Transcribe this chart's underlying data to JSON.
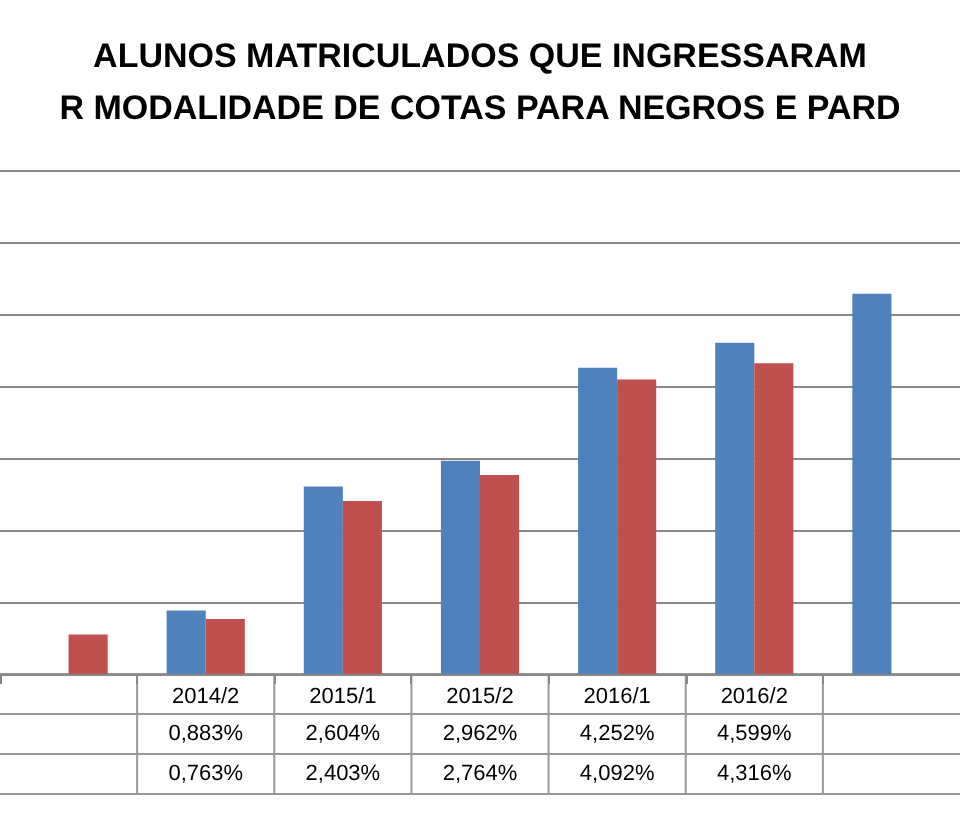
{
  "chart_data": {
    "type": "bar",
    "title": "ALUNOS MATRICULADOS QUE INGRESSARAM\nR MODALIDADE DE COTAS PARA NEGROS E PARD",
    "categories": [
      null,
      "2014/2",
      "2015/1",
      "2015/2",
      "2016/1",
      "2016/2",
      null
    ],
    "series": [
      {
        "color": "#4f81bd",
        "values": [
          null,
          0.883,
          2.604,
          2.962,
          4.252,
          4.599,
          5.28
        ],
        "value_labels": [
          null,
          "0,883%",
          "2,604%",
          "2,962%",
          "4,252%",
          "4,599%",
          null
        ]
      },
      {
        "color": "#c0504d",
        "values": [
          0.55,
          0.763,
          2.403,
          2.764,
          4.092,
          4.316,
          null
        ],
        "value_labels": [
          null,
          "0,763%",
          "2,403%",
          "2,764%",
          "4,092%",
          "4,316%",
          null
        ]
      }
    ],
    "ylim": [
      0,
      7
    ],
    "yticks": [
      0,
      1,
      2,
      3,
      4,
      5,
      6,
      7
    ],
    "grid": "y",
    "tick_labels": "x"
  }
}
